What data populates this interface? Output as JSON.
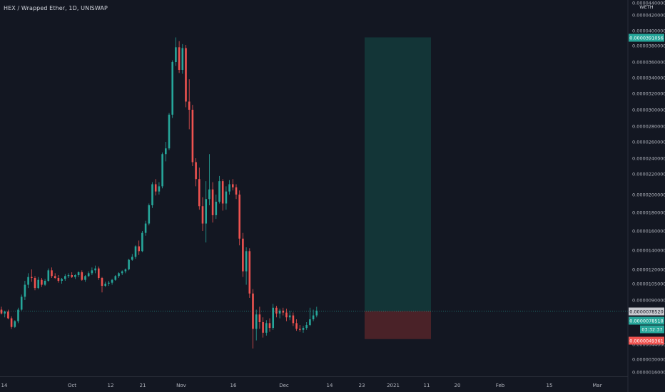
{
  "header": {
    "title": "HEX / Wrapped Ether, 1D, UNISWAP",
    "currency": "WETH"
  },
  "colors": {
    "background": "#131722",
    "bull": "#26a69a",
    "bear": "#ef5350",
    "text": "#d1d4dc",
    "profit_zone": "#133537",
    "loss_zone": "#4a2228"
  },
  "chart_data": {
    "type": "candlestick",
    "title": "HEX / Wrapped Ether, 1D, UNISWAP",
    "x_ticks": [
      "14",
      "Oct",
      "12",
      "21",
      "Nov",
      "16",
      "Dec",
      "14",
      "23",
      "2021",
      "11",
      "20",
      "Feb",
      "15",
      "Mar"
    ],
    "y_ticks": [
      "0.0000440000",
      "0.0000420000",
      "0.0000400000",
      "0.0000380000",
      "0.0000360000",
      "0.0000340000",
      "0.0000320000",
      "0.0000300000",
      "0.0000280000",
      "0.0000260000",
      "0.0000240000",
      "0.0000220000",
      "0.0000200000",
      "0.0000180000",
      "0.0000160000",
      "0.0000140000",
      "0.0000120000",
      "0.0000105000",
      "0.0000090000",
      "0.0000044000",
      "0.0000030000",
      "0.0000016000"
    ],
    "price_tags": [
      {
        "label": "0.0000391056",
        "kind": "target"
      },
      {
        "label": "0.0000078520",
        "kind": "entry"
      },
      {
        "label": "0.0000078518",
        "kind": "last"
      },
      {
        "label": "03:32:37",
        "kind": "countdown"
      },
      {
        "label": "0.0000049361",
        "kind": "stop"
      }
    ],
    "position": {
      "type": "long",
      "entry": 7.852e-06,
      "target": 3.91056e-05,
      "stop": 4.9361e-06
    },
    "candles": [
      {
        "o": 8e-06,
        "h": 8.3e-06,
        "l": 7.5e-06,
        "c": 7.6e-06
      },
      {
        "o": 7.6e-06,
        "h": 7.9e-06,
        "l": 7.2e-06,
        "c": 7.8e-06
      },
      {
        "o": 7.8e-06,
        "h": 8e-06,
        "l": 7e-06,
        "c": 7.1e-06
      },
      {
        "o": 7.1e-06,
        "h": 7.3e-06,
        "l": 6e-06,
        "c": 6.2e-06
      },
      {
        "o": 6.2e-06,
        "h": 6.9e-06,
        "l": 6.1e-06,
        "c": 6.8e-06
      },
      {
        "o": 6.8e-06,
        "h": 8.2e-06,
        "l": 6.6e-06,
        "c": 8e-06
      },
      {
        "o": 8e-06,
        "h": 9.5e-06,
        "l": 7.9e-06,
        "c": 9.3e-06
      },
      {
        "o": 9.3e-06,
        "h": 1.08e-05,
        "l": 9e-06,
        "c": 1.04e-05
      },
      {
        "o": 1.04e-05,
        "h": 1.16e-05,
        "l": 1.01e-05,
        "c": 1.12e-05
      },
      {
        "o": 1.12e-05,
        "h": 1.2e-05,
        "l": 1.07e-05,
        "c": 1.11e-05
      },
      {
        "o": 1.11e-05,
        "h": 1.13e-05,
        "l": 9.9e-06,
        "c": 1.01e-05
      },
      {
        "o": 1.01e-05,
        "h": 1.12e-05,
        "l": 1e-05,
        "c": 1.09e-05
      },
      {
        "o": 1.09e-05,
        "h": 1.11e-05,
        "l": 1.02e-05,
        "c": 1.04e-05
      },
      {
        "o": 1.04e-05,
        "h": 1.1e-05,
        "l": 1.03e-05,
        "c": 1.08e-05
      },
      {
        "o": 1.08e-05,
        "h": 1.21e-05,
        "l": 1.07e-05,
        "c": 1.19e-05
      },
      {
        "o": 1.19e-05,
        "h": 1.22e-05,
        "l": 1.11e-05,
        "c": 1.13e-05
      },
      {
        "o": 1.13e-05,
        "h": 1.16e-05,
        "l": 1.1e-05,
        "c": 1.11e-05
      },
      {
        "o": 1.11e-05,
        "h": 1.14e-05,
        "l": 1.06e-05,
        "c": 1.08e-05
      },
      {
        "o": 1.08e-05,
        "h": 1.11e-05,
        "l": 1.05e-05,
        "c": 1.1e-05
      },
      {
        "o": 1.1e-05,
        "h": 1.15e-05,
        "l": 1.08e-05,
        "c": 1.13e-05
      },
      {
        "o": 1.13e-05,
        "h": 1.16e-05,
        "l": 1.11e-05,
        "c": 1.14e-05
      },
      {
        "o": 1.14e-05,
        "h": 1.17e-05,
        "l": 1.11e-05,
        "c": 1.12e-05
      },
      {
        "o": 1.12e-05,
        "h": 1.15e-05,
        "l": 1.1e-05,
        "c": 1.14e-05
      },
      {
        "o": 1.14e-05,
        "h": 1.18e-05,
        "l": 1.12e-05,
        "c": 1.17e-05
      },
      {
        "o": 1.17e-05,
        "h": 1.19e-05,
        "l": 1.08e-05,
        "c": 1.09e-05
      },
      {
        "o": 1.09e-05,
        "h": 1.14e-05,
        "l": 1.07e-05,
        "c": 1.13e-05
      },
      {
        "o": 1.13e-05,
        "h": 1.18e-05,
        "l": 1.12e-05,
        "c": 1.16e-05
      },
      {
        "o": 1.16e-05,
        "h": 1.22e-05,
        "l": 1.14e-05,
        "c": 1.19e-05
      },
      {
        "o": 1.19e-05,
        "h": 1.24e-05,
        "l": 1.16e-05,
        "c": 1.21e-05
      },
      {
        "o": 1.21e-05,
        "h": 1.23e-05,
        "l": 1.09e-05,
        "c": 1.11e-05
      },
      {
        "o": 1.11e-05,
        "h": 1.12e-05,
        "l": 9.7e-06,
        "c": 1.03e-05
      },
      {
        "o": 1.03e-05,
        "h": 1.07e-05,
        "l": 1.02e-05,
        "c": 1.05e-05
      },
      {
        "o": 1.05e-05,
        "h": 1.08e-05,
        "l": 1.03e-05,
        "c": 1.06e-05
      },
      {
        "o": 1.06e-05,
        "h": 1.1e-05,
        "l": 1.04e-05,
        "c": 1.09e-05
      },
      {
        "o": 1.09e-05,
        "h": 1.14e-05,
        "l": 1.08e-05,
        "c": 1.13e-05
      },
      {
        "o": 1.13e-05,
        "h": 1.17e-05,
        "l": 1.11e-05,
        "c": 1.16e-05
      },
      {
        "o": 1.16e-05,
        "h": 1.19e-05,
        "l": 1.14e-05,
        "c": 1.18e-05
      },
      {
        "o": 1.18e-05,
        "h": 1.21e-05,
        "l": 1.16e-05,
        "c": 1.2e-05
      },
      {
        "o": 1.2e-05,
        "h": 1.31e-05,
        "l": 1.19e-05,
        "c": 1.3e-05
      },
      {
        "o": 1.3e-05,
        "h": 1.36e-05,
        "l": 1.29e-05,
        "c": 1.33e-05
      },
      {
        "o": 1.33e-05,
        "h": 1.45e-05,
        "l": 1.31e-05,
        "c": 1.44e-05
      },
      {
        "o": 1.44e-05,
        "h": 1.5e-05,
        "l": 1.35e-05,
        "c": 1.39e-05
      },
      {
        "o": 1.39e-05,
        "h": 1.6e-05,
        "l": 1.38e-05,
        "c": 1.58e-05
      },
      {
        "o": 1.58e-05,
        "h": 1.71e-05,
        "l": 1.55e-05,
        "c": 1.68e-05
      },
      {
        "o": 1.68e-05,
        "h": 1.9e-05,
        "l": 1.66e-05,
        "c": 1.88e-05
      },
      {
        "o": 1.88e-05,
        "h": 2.12e-05,
        "l": 1.85e-05,
        "c": 2.1e-05
      },
      {
        "o": 2.1e-05,
        "h": 2.15e-05,
        "l": 1.99e-05,
        "c": 2.03e-05
      },
      {
        "o": 2.03e-05,
        "h": 2.12e-05,
        "l": 2e-05,
        "c": 2.08e-05
      },
      {
        "o": 2.08e-05,
        "h": 2.47e-05,
        "l": 2.06e-05,
        "c": 2.45e-05
      },
      {
        "o": 2.45e-05,
        "h": 2.6e-05,
        "l": 2.36e-05,
        "c": 2.52e-05
      },
      {
        "o": 2.52e-05,
        "h": 2.96e-05,
        "l": 2.5e-05,
        "c": 2.94e-05
      },
      {
        "o": 2.94e-05,
        "h": 3.62e-05,
        "l": 2.9e-05,
        "c": 3.6e-05
      },
      {
        "o": 3.6e-05,
        "h": 3.91e-05,
        "l": 3.55e-05,
        "c": 3.78e-05
      },
      {
        "o": 3.78e-05,
        "h": 3.86e-05,
        "l": 3.46e-05,
        "c": 3.5e-05
      },
      {
        "o": 3.5e-05,
        "h": 3.82e-05,
        "l": 3.45e-05,
        "c": 3.77e-05
      },
      {
        "o": 3.77e-05,
        "h": 3.81e-05,
        "l": 3.03e-05,
        "c": 3.1e-05
      },
      {
        "o": 3.1e-05,
        "h": 3.38e-05,
        "l": 2.76e-05,
        "c": 3e-05
      },
      {
        "o": 3e-05,
        "h": 3.06e-05,
        "l": 2.3e-05,
        "c": 2.35e-05
      },
      {
        "o": 2.35e-05,
        "h": 2.4e-05,
        "l": 2.08e-05,
        "c": 2.15e-05
      },
      {
        "o": 2.15e-05,
        "h": 2.28e-05,
        "l": 1.83e-05,
        "c": 1.87e-05
      },
      {
        "o": 1.87e-05,
        "h": 1.97e-05,
        "l": 1.6e-05,
        "c": 1.68e-05
      },
      {
        "o": 1.68e-05,
        "h": 2.13e-05,
        "l": 1.48e-05,
        "c": 1.95e-05
      },
      {
        "o": 1.95e-05,
        "h": 2.45e-05,
        "l": 1.88e-05,
        "c": 2.05e-05
      },
      {
        "o": 2.05e-05,
        "h": 2.12e-05,
        "l": 1.69e-05,
        "c": 1.77e-05
      },
      {
        "o": 1.77e-05,
        "h": 2e-05,
        "l": 1.73e-05,
        "c": 1.92e-05
      },
      {
        "o": 1.92e-05,
        "h": 2.18e-05,
        "l": 1.9e-05,
        "c": 2.13e-05
      },
      {
        "o": 2.13e-05,
        "h": 2.15e-05,
        "l": 1.82e-05,
        "c": 1.9e-05
      },
      {
        "o": 1.9e-05,
        "h": 2.08e-05,
        "l": 1.83e-05,
        "c": 2.03e-05
      },
      {
        "o": 2.03e-05,
        "h": 2.14e-05,
        "l": 2e-05,
        "c": 2.1e-05
      },
      {
        "o": 2.1e-05,
        "h": 2.15e-05,
        "l": 2.04e-05,
        "c": 2.07e-05
      },
      {
        "o": 2.07e-05,
        "h": 2.1e-05,
        "l": 1.95e-05,
        "c": 2e-05
      },
      {
        "o": 2e-05,
        "h": 2.04e-05,
        "l": 1.45e-05,
        "c": 1.52e-05
      },
      {
        "o": 1.52e-05,
        "h": 1.58e-05,
        "l": 1.12e-05,
        "c": 1.18e-05
      },
      {
        "o": 1.18e-05,
        "h": 1.43e-05,
        "l": 1.04e-05,
        "c": 1.39e-05
      },
      {
        "o": 1.39e-05,
        "h": 1.42e-05,
        "l": 9.2e-06,
        "c": 9.6e-06
      },
      {
        "o": 9.6e-06,
        "h": 1e-05,
        "l": 4e-06,
        "c": 6e-06
      },
      {
        "o": 6e-06,
        "h": 8e-06,
        "l": 4.8e-06,
        "c": 7.5e-06
      },
      {
        "o": 7.5e-06,
        "h": 8.3e-06,
        "l": 6e-06,
        "c": 6.7e-06
      },
      {
        "o": 6.7e-06,
        "h": 7.2e-06,
        "l": 5.1e-06,
        "c": 5.6e-06
      },
      {
        "o": 5.6e-06,
        "h": 6.9e-06,
        "l": 5.3e-06,
        "c": 6.6e-06
      },
      {
        "o": 6.6e-06,
        "h": 7.1e-06,
        "l": 5.7e-06,
        "c": 6.1e-06
      },
      {
        "o": 6.1e-06,
        "h": 8.6e-06,
        "l": 5.9e-06,
        "c": 8.2e-06
      },
      {
        "o": 8.2e-06,
        "h": 8.4e-06,
        "l": 7.2e-06,
        "c": 7.6e-06
      },
      {
        "o": 7.6e-06,
        "h": 8.1e-06,
        "l": 7.1e-06,
        "c": 7.9e-06
      },
      {
        "o": 7.9e-06,
        "h": 8.2e-06,
        "l": 7.4e-06,
        "c": 7.7e-06
      },
      {
        "o": 7.7e-06,
        "h": 8.1e-06,
        "l": 6.8e-06,
        "c": 7.2e-06
      },
      {
        "o": 7.2e-06,
        "h": 7.9e-06,
        "l": 6.9e-06,
        "c": 7.4e-06
      },
      {
        "o": 7.4e-06,
        "h": 7.7e-06,
        "l": 6.3e-06,
        "c": 6.6e-06
      },
      {
        "o": 6.6e-06,
        "h": 7e-06,
        "l": 5.8e-06,
        "c": 6e-06
      },
      {
        "o": 6e-06,
        "h": 6.4e-06,
        "l": 5.7e-06,
        "c": 5.9e-06
      },
      {
        "o": 5.9e-06,
        "h": 6.3e-06,
        "l": 5.6e-06,
        "c": 6.1e-06
      },
      {
        "o": 6.1e-06,
        "h": 6.7e-06,
        "l": 5.9e-06,
        "c": 6.4e-06
      },
      {
        "o": 6.4e-06,
        "h": 8.2e-06,
        "l": 6.3e-06,
        "c": 7e-06
      },
      {
        "o": 7e-06,
        "h": 8e-06,
        "l": 6.8e-06,
        "c": 7.4e-06
      },
      {
        "o": 7.4e-06,
        "h": 8.3e-06,
        "l": 7.2e-06,
        "c": 7.9e-06
      }
    ]
  }
}
